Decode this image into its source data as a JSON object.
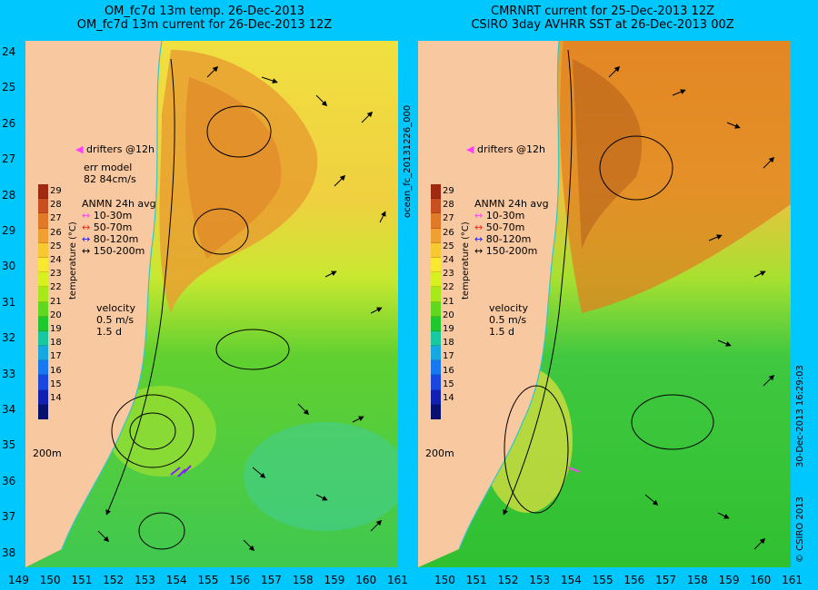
{
  "left_panel": {
    "title_line1": "OM_fc7d 13m temp. 26-Dec-2013",
    "title_line2": "OM_fc7d 13m current for 26-Dec-2013 12Z",
    "drifters_label": "drifters @12h",
    "err_model_line1": "err model",
    "err_model_line2": "82 84cm/s",
    "velocity_label": "velocity",
    "velocity_scale": "0.5 m/s",
    "velocity_days": "1.5 d",
    "isobath_label": "200m"
  },
  "right_panel": {
    "title_line1": "CMRNRT current for 25-Dec-2013 12Z",
    "title_line2": "CSIRO 3day AVHRR SST at 26-Dec-2013 00Z",
    "drifters_label": "drifters @12h",
    "velocity_label": "velocity",
    "velocity_scale": "0.5 m/s",
    "velocity_days": "1.5 d",
    "isobath_label": "200m"
  },
  "colorbar": {
    "label": "temperature (°C)",
    "ticks": [
      "29",
      "28",
      "27",
      "26",
      "25",
      "24",
      "23",
      "22",
      "21",
      "20",
      "19",
      "18",
      "17",
      "16",
      "15",
      "14"
    ],
    "colors": [
      "#a02a10",
      "#c85020",
      "#e07a28",
      "#f0a030",
      "#f8c830",
      "#f8e830",
      "#d8f020",
      "#a8e818",
      "#60d820",
      "#20c830",
      "#18c8a0",
      "#18a8e0",
      "#1878f0",
      "#1848e0",
      "#1020b0",
      "#081070"
    ]
  },
  "anmn_legend": {
    "title": "ANMN 24h avg",
    "rows": [
      {
        "label": "10-30m",
        "color": "#ff40ff"
      },
      {
        "label": "50-70m",
        "color": "#ff2020"
      },
      {
        "label": "80-120m",
        "color": "#2020ff"
      },
      {
        "label": "150-200m",
        "color": "#000000"
      }
    ]
  },
  "y_ticks": [
    "24",
    "25",
    "26",
    "27",
    "28",
    "29",
    "30",
    "31",
    "32",
    "33",
    "34",
    "35",
    "36",
    "37",
    "38"
  ],
  "x_ticks": [
    "149",
    "150",
    "151",
    "152",
    "153",
    "154",
    "155",
    "156",
    "157",
    "158",
    "159",
    "160",
    "161"
  ],
  "x_ticks_right": [
    "150",
    "151",
    "152",
    "153",
    "154",
    "155",
    "156",
    "157",
    "158",
    "159",
    "160",
    "161"
  ],
  "side_labels": {
    "file_id": "ocean_fc_20131226_000",
    "timestamp": "30-Dec-2013 16:29:03",
    "copyright": "© CSIRO 2013"
  },
  "colors": {
    "land": "#f8c8a0",
    "background": "#00c8ff",
    "warm_core": "#e8901e",
    "mid": "#f0e040",
    "cool": "#30c830",
    "coast_contour": "#30c8c8"
  }
}
